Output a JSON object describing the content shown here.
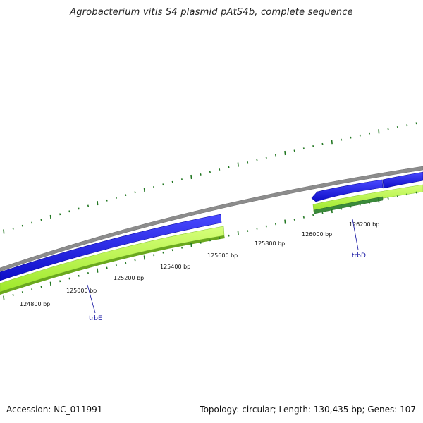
{
  "title": "Agrobacterium vitis S4 plasmid pAtS4b, complete sequence",
  "footer": {
    "accession": "Accession: NC_011991",
    "summary": "Topology: circular; Length: 130,435 bp; Genes: 107"
  },
  "colors": {
    "backbone": "#8a8a8a",
    "forward_gene": "#1a1aff",
    "cds": "#b5ff3a",
    "cds_shadow": "#6aa81e",
    "rna": "#3a8a3a",
    "ticks": "#227722",
    "label": "#1010a0"
  },
  "scale_labels": [
    "124800 bp",
    "125000 bp",
    "125200 bp",
    "125400 bp",
    "125600 bp",
    "125800 bp",
    "126000 bp",
    "126200 bp"
  ],
  "genes": [
    {
      "name": "trbE"
    },
    {
      "name": "trbD"
    }
  ]
}
